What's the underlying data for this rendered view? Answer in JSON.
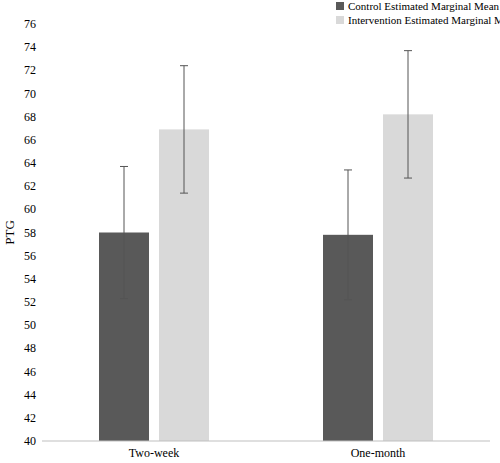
{
  "chart_data": {
    "type": "bar",
    "y_label": "PTG",
    "categories": [
      "Two-week",
      "One-month"
    ],
    "series": [
      {
        "name": "Control Estimated Marginal Mean",
        "color": "#595959",
        "values": [
          58.0,
          57.8
        ],
        "errors": [
          5.7,
          5.6
        ]
      },
      {
        "name": "Intervention Estimated Marginal Mean",
        "color": "#d9d9d9",
        "values": [
          66.9,
          68.2
        ],
        "errors": [
          5.5,
          5.5
        ]
      }
    ],
    "ylim": [
      40,
      76
    ],
    "yticks": [
      40,
      42,
      44,
      46,
      48,
      50,
      52,
      54,
      56,
      58,
      60,
      62,
      64,
      66,
      68,
      70,
      72,
      74,
      76
    ],
    "grid": false,
    "legend": "top-right"
  }
}
